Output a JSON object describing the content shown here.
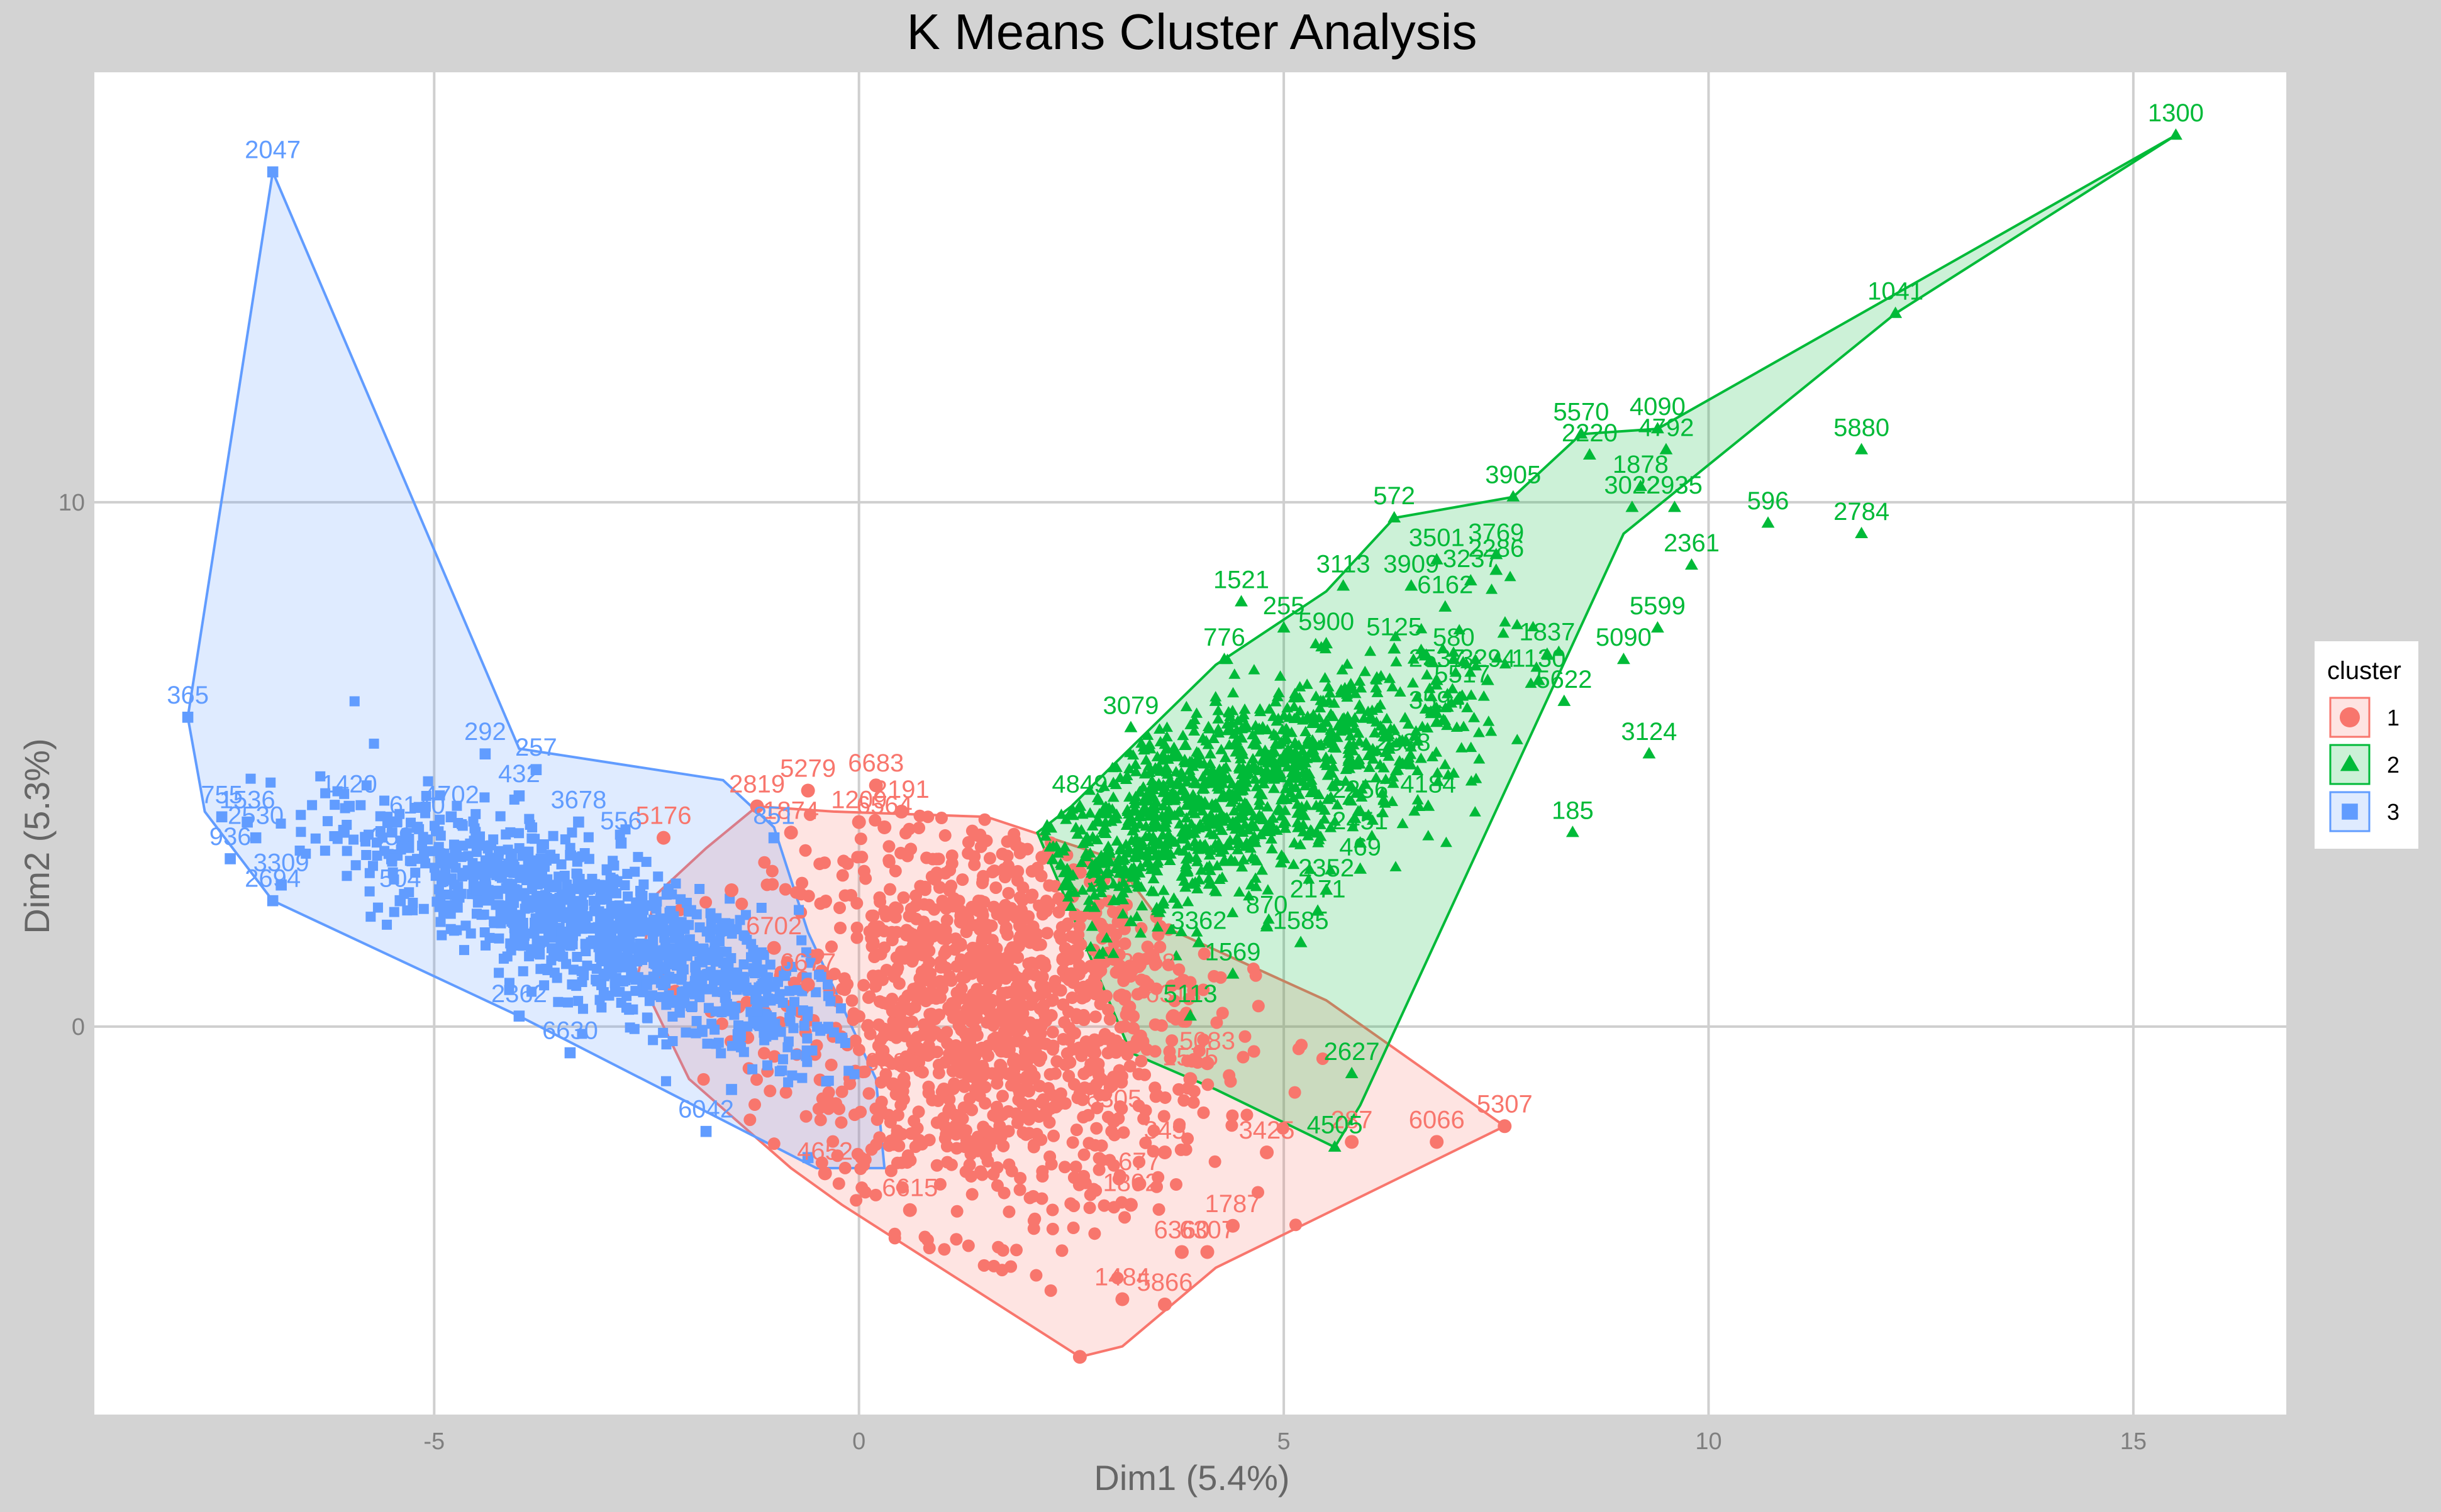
{
  "chart_data": {
    "type": "scatter",
    "title": "K Means Cluster Analysis",
    "xlabel": "Dim1 (5.4%)",
    "ylabel": "Dim2 (5.3%)",
    "xlim": [
      -9,
      16.8
    ],
    "ylim": [
      -7.4,
      18.2
    ],
    "xticks": [
      -5,
      0,
      5,
      10,
      15
    ],
    "yticks": [
      0,
      10
    ],
    "grid": true,
    "panel_background": "#ffffff",
    "grid_color": "#cfcfcf",
    "legend": {
      "title": "cluster",
      "position": "right",
      "entries": [
        "1",
        "2",
        "3"
      ]
    },
    "series": [
      {
        "name": "1",
        "marker": "circle",
        "color": "#F8766D",
        "hull": [
          [
            -0.3,
            4.1
          ],
          [
            1.5,
            4.0
          ],
          [
            3.0,
            3.2
          ],
          [
            3.6,
            1.9
          ],
          [
            5.5,
            0.5
          ],
          [
            7.6,
            -1.9
          ],
          [
            4.2,
            -4.6
          ],
          [
            3.1,
            -6.1
          ],
          [
            2.6,
            -6.3
          ],
          [
            -0.2,
            -3.4
          ],
          [
            -0.8,
            -2.7
          ],
          [
            -2.0,
            -1.0
          ],
          [
            -2.6,
            1.0
          ],
          [
            -2.4,
            2.5
          ],
          [
            -1.8,
            3.4
          ],
          [
            -1.2,
            4.2
          ]
        ],
        "points": [
          {
            "x": -1.2,
            "y": 4.2,
            "label": "2819"
          },
          {
            "x": -0.6,
            "y": 4.5,
            "label": "5279"
          },
          {
            "x": 0.2,
            "y": 4.6,
            "label": "6683"
          },
          {
            "x": 0.5,
            "y": 4.1,
            "label": "2191"
          },
          {
            "x": -2.3,
            "y": 3.6,
            "label": "5176"
          },
          {
            "x": 0.0,
            "y": 3.9,
            "label": "1209"
          },
          {
            "x": 0.3,
            "y": 3.8,
            "label": "6564"
          },
          {
            "x": -0.8,
            "y": 3.7,
            "label": "1874"
          },
          {
            "x": -1.5,
            "y": 2.6,
            "label": ""
          },
          {
            "x": -1.0,
            "y": 1.5,
            "label": "6702"
          },
          {
            "x": -0.6,
            "y": 0.8,
            "label": "6677"
          },
          {
            "x": 0.4,
            "y": 0.3,
            "label": ""
          },
          {
            "x": 1.0,
            "y": -1.2,
            "label": ""
          },
          {
            "x": 0.4,
            "y": -1.1,
            "label": "6880"
          },
          {
            "x": -0.4,
            "y": -2.8,
            "label": "4652"
          },
          {
            "x": 0.6,
            "y": -3.5,
            "label": "6615"
          },
          {
            "x": 1.5,
            "y": -2.0,
            "label": ""
          },
          {
            "x": 2.0,
            "y": -0.5,
            "label": ""
          },
          {
            "x": 2.5,
            "y": 1.0,
            "label": ""
          },
          {
            "x": 1.2,
            "y": 2.0,
            "label": ""
          },
          {
            "x": 3.0,
            "y": -1.8,
            "label": "6305"
          },
          {
            "x": 3.6,
            "y": -2.4,
            "label": "345"
          },
          {
            "x": 3.3,
            "y": -3.0,
            "label": "677"
          },
          {
            "x": 3.2,
            "y": -3.4,
            "label": "1802"
          },
          {
            "x": 4.4,
            "y": -3.8,
            "label": "1787"
          },
          {
            "x": 4.1,
            "y": -4.3,
            "label": "6307"
          },
          {
            "x": 3.8,
            "y": -4.3,
            "label": "6360"
          },
          {
            "x": 3.6,
            "y": -5.3,
            "label": "5866"
          },
          {
            "x": 3.1,
            "y": -5.2,
            "label": "1484"
          },
          {
            "x": 2.6,
            "y": -6.3,
            "label": ""
          },
          {
            "x": 4.8,
            "y": -2.4,
            "label": "3425"
          },
          {
            "x": 5.8,
            "y": -2.2,
            "label": "287"
          },
          {
            "x": 6.8,
            "y": -2.2,
            "label": "6066"
          },
          {
            "x": 7.6,
            "y": -1.9,
            "label": "5307"
          },
          {
            "x": 3.9,
            "y": -1.0,
            "label": "1575"
          },
          {
            "x": 4.1,
            "y": -0.7,
            "label": "5083"
          },
          {
            "x": 3.7,
            "y": 0.2,
            "label": "6313"
          },
          {
            "x": 3.4,
            "y": 0.8,
            "label": "2008"
          }
        ]
      },
      {
        "name": "2",
        "marker": "triangle",
        "color": "#00BA38",
        "hull": [
          [
            15.5,
            17.0
          ],
          [
            12.2,
            13.6
          ],
          [
            9.0,
            9.4
          ],
          [
            5.9,
            -1.5
          ],
          [
            5.6,
            -2.3
          ],
          [
            4.2,
            -1.2
          ],
          [
            3.2,
            -0.5
          ],
          [
            2.6,
            1.8
          ],
          [
            2.1,
            3.7
          ],
          [
            2.5,
            4.2
          ],
          [
            3.0,
            5.0
          ],
          [
            4.2,
            6.9
          ],
          [
            5.5,
            8.3
          ],
          [
            6.3,
            9.7
          ],
          [
            7.7,
            10.1
          ],
          [
            8.5,
            11.3
          ],
          [
            9.4,
            11.4
          ]
        ],
        "points": [
          {
            "x": 15.5,
            "y": 17.0,
            "label": "1300"
          },
          {
            "x": 12.2,
            "y": 13.6,
            "label": "1041"
          },
          {
            "x": 11.8,
            "y": 11.0,
            "label": "5880"
          },
          {
            "x": 11.8,
            "y": 9.4,
            "label": "2784"
          },
          {
            "x": 10.7,
            "y": 9.6,
            "label": "596"
          },
          {
            "x": 9.8,
            "y": 8.8,
            "label": "2361"
          },
          {
            "x": 9.4,
            "y": 11.4,
            "label": "4090"
          },
          {
            "x": 9.5,
            "y": 11.0,
            "label": "4792"
          },
          {
            "x": 8.5,
            "y": 11.3,
            "label": "5570"
          },
          {
            "x": 8.6,
            "y": 10.9,
            "label": "2220"
          },
          {
            "x": 9.2,
            "y": 10.3,
            "label": "1878"
          },
          {
            "x": 9.1,
            "y": 9.9,
            "label": "3022"
          },
          {
            "x": 9.6,
            "y": 9.9,
            "label": "2935"
          },
          {
            "x": 7.7,
            "y": 10.1,
            "label": "3905"
          },
          {
            "x": 6.3,
            "y": 9.7,
            "label": "572"
          },
          {
            "x": 9.4,
            "y": 7.6,
            "label": "5599"
          },
          {
            "x": 9.0,
            "y": 7.0,
            "label": "5090"
          },
          {
            "x": 8.1,
            "y": 7.1,
            "label": "1837"
          },
          {
            "x": 8.0,
            "y": 6.6,
            "label": "1130"
          },
          {
            "x": 8.3,
            "y": 6.2,
            "label": "5622"
          },
          {
            "x": 9.3,
            "y": 5.2,
            "label": "3124"
          },
          {
            "x": 8.4,
            "y": 3.7,
            "label": "185"
          },
          {
            "x": 7.5,
            "y": 9.0,
            "label": "3769"
          },
          {
            "x": 7.2,
            "y": 8.5,
            "label": "3237"
          },
          {
            "x": 7.5,
            "y": 8.7,
            "label": "2286"
          },
          {
            "x": 6.8,
            "y": 8.9,
            "label": "3501"
          },
          {
            "x": 6.5,
            "y": 8.4,
            "label": "3909"
          },
          {
            "x": 6.9,
            "y": 8.0,
            "label": "6162"
          },
          {
            "x": 5.7,
            "y": 8.4,
            "label": "3113"
          },
          {
            "x": 4.5,
            "y": 8.1,
            "label": "1521"
          },
          {
            "x": 5.0,
            "y": 7.6,
            "label": "255"
          },
          {
            "x": 5.5,
            "y": 7.3,
            "label": "5900"
          },
          {
            "x": 4.3,
            "y": 7.0,
            "label": "776"
          },
          {
            "x": 6.3,
            "y": 7.2,
            "label": "5125"
          },
          {
            "x": 7.0,
            "y": 7.0,
            "label": "580"
          },
          {
            "x": 6.8,
            "y": 6.6,
            "label": "2537"
          },
          {
            "x": 7.4,
            "y": 6.6,
            "label": "3294"
          },
          {
            "x": 6.8,
            "y": 5.8,
            "label": "3594"
          },
          {
            "x": 7.1,
            "y": 6.3,
            "label": "5517"
          },
          {
            "x": 3.2,
            "y": 5.7,
            "label": "3079"
          },
          {
            "x": 6.4,
            "y": 5.0,
            "label": "2888"
          },
          {
            "x": 6.7,
            "y": 4.2,
            "label": "4184"
          },
          {
            "x": 5.9,
            "y": 4.1,
            "label": "2256"
          },
          {
            "x": 5.9,
            "y": 3.5,
            "label": "2451"
          },
          {
            "x": 5.9,
            "y": 3.0,
            "label": "469"
          },
          {
            "x": 5.5,
            "y": 2.6,
            "label": "2352"
          },
          {
            "x": 5.4,
            "y": 2.2,
            "label": "2171"
          },
          {
            "x": 5.2,
            "y": 1.6,
            "label": "1585"
          },
          {
            "x": 4.8,
            "y": 1.9,
            "label": "870"
          },
          {
            "x": 2.6,
            "y": 4.2,
            "label": "4849"
          },
          {
            "x": 3.0,
            "y": 2.4,
            "label": "5611"
          },
          {
            "x": 4.0,
            "y": 1.6,
            "label": "3362"
          },
          {
            "x": 4.4,
            "y": 1.0,
            "label": "1569"
          },
          {
            "x": 3.9,
            "y": 0.2,
            "label": "5113"
          },
          {
            "x": 5.8,
            "y": -0.9,
            "label": "2627"
          },
          {
            "x": 5.6,
            "y": -2.3,
            "label": "4505"
          },
          {
            "x": 3.8,
            "y": 4.5,
            "label": ""
          },
          {
            "x": 4.5,
            "y": 5.5,
            "label": ""
          },
          {
            "x": 5.0,
            "y": 3.2,
            "label": ""
          },
          {
            "x": 3.5,
            "y": 3.5,
            "label": ""
          },
          {
            "x": 4.2,
            "y": 6.2,
            "label": ""
          },
          {
            "x": 5.5,
            "y": 5.8,
            "label": ""
          },
          {
            "x": 3.2,
            "y": 2.0,
            "label": ""
          },
          {
            "x": 4.8,
            "y": 4.8,
            "label": ""
          }
        ]
      },
      {
        "name": "3",
        "marker": "square",
        "color": "#619CFF",
        "hull": [
          [
            -6.9,
            16.3
          ],
          [
            -7.9,
            5.9
          ],
          [
            -7.7,
            4.1
          ],
          [
            -6.9,
            2.4
          ],
          [
            -4.0,
            0.2
          ],
          [
            -0.5,
            -2.7
          ],
          [
            0.3,
            -2.7
          ],
          [
            0.2,
            -1.0
          ],
          [
            -0.6,
            1.8
          ],
          [
            -1.0,
            3.8
          ],
          [
            -1.6,
            4.7
          ],
          [
            -4.0,
            5.3
          ]
        ],
        "points": [
          {
            "x": -6.9,
            "y": 16.3,
            "label": "2047"
          },
          {
            "x": -7.9,
            "y": 5.9,
            "label": "365"
          },
          {
            "x": -7.5,
            "y": 4.0,
            "label": "755"
          },
          {
            "x": -7.1,
            "y": 3.6,
            "label": "2530"
          },
          {
            "x": -7.2,
            "y": 3.9,
            "label": "1536"
          },
          {
            "x": -7.4,
            "y": 3.2,
            "label": "936"
          },
          {
            "x": -6.8,
            "y": 2.7,
            "label": "3309"
          },
          {
            "x": -6.9,
            "y": 2.4,
            "label": "2694"
          },
          {
            "x": -6.0,
            "y": 4.2,
            "label": "1420"
          },
          {
            "x": -4.4,
            "y": 5.2,
            "label": "292"
          },
          {
            "x": -3.8,
            "y": 4.9,
            "label": "257"
          },
          {
            "x": -4.0,
            "y": 4.4,
            "label": "432"
          },
          {
            "x": -3.3,
            "y": 3.9,
            "label": "3678"
          },
          {
            "x": -5.2,
            "y": 3.8,
            "label": "6140"
          },
          {
            "x": -4.8,
            "y": 4.0,
            "label": "4702"
          },
          {
            "x": -5.5,
            "y": 3.2,
            "label": "359"
          },
          {
            "x": -5.4,
            "y": 2.4,
            "label": "504"
          },
          {
            "x": -2.8,
            "y": 3.5,
            "label": "556"
          },
          {
            "x": -4.0,
            "y": 0.2,
            "label": "2362"
          },
          {
            "x": -3.4,
            "y": -0.5,
            "label": "6630"
          },
          {
            "x": -1.8,
            "y": -2.0,
            "label": "6042"
          },
          {
            "x": -1.0,
            "y": 3.6,
            "label": "851"
          },
          {
            "x": -1.5,
            "y": -1.2,
            "label": ""
          },
          {
            "x": -2.5,
            "y": 0.8,
            "label": ""
          },
          {
            "x": -3.5,
            "y": 1.8,
            "label": ""
          },
          {
            "x": -4.5,
            "y": 2.6,
            "label": ""
          },
          {
            "x": -2.0,
            "y": 2.2,
            "label": ""
          },
          {
            "x": -3.0,
            "y": 1.0,
            "label": ""
          },
          {
            "x": -0.6,
            "y": -2.5,
            "label": ""
          },
          {
            "x": -1.2,
            "y": 0.3,
            "label": ""
          }
        ]
      }
    ]
  }
}
